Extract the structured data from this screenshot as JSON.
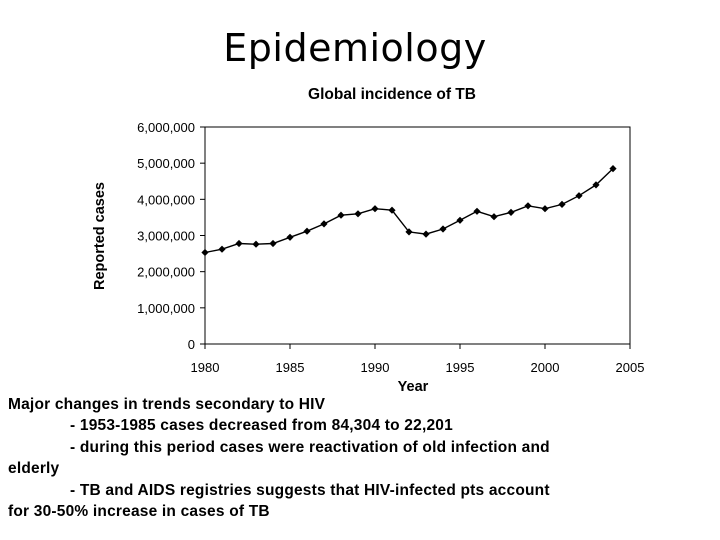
{
  "slide": {
    "title": "Epidemiology"
  },
  "chart_data": {
    "type": "line",
    "title": "Global incidence of TB",
    "xlabel": "Year",
    "ylabel": "Reported cases",
    "xlim": [
      1980,
      2005
    ],
    "ylim": [
      0,
      6000000
    ],
    "xticks": [
      1980,
      1985,
      1990,
      1995,
      2000,
      2005
    ],
    "xtick_labels": [
      "1980",
      "1985",
      "1990",
      "1995",
      "2000",
      "2005"
    ],
    "yticks": [
      0,
      1000000,
      2000000,
      3000000,
      4000000,
      5000000,
      6000000
    ],
    "ytick_labels": [
      "0",
      "1,000,000",
      "2,000,000",
      "3,000,000",
      "4,000,000",
      "5,000,000",
      "6,000,000"
    ],
    "grid": false,
    "marker": "diamond",
    "series": [
      {
        "name": "Reported cases",
        "x": [
          1980,
          1981,
          1982,
          1983,
          1984,
          1985,
          1986,
          1987,
          1988,
          1989,
          1990,
          1991,
          1992,
          1993,
          1994,
          1995,
          1996,
          1997,
          1998,
          1999,
          2000,
          2001,
          2002,
          2003,
          2004
        ],
        "values": [
          2530000,
          2620000,
          2780000,
          2760000,
          2780000,
          2950000,
          3120000,
          3320000,
          3560000,
          3600000,
          3740000,
          3700000,
          3100000,
          3040000,
          3180000,
          3420000,
          3670000,
          3520000,
          3640000,
          3820000,
          3740000,
          3860000,
          4100000,
          4400000,
          4850000
        ]
      }
    ]
  },
  "notes": {
    "lines": [
      "Major changes in trends secondary to HIV",
      "- 1953-1985 cases decreased from 84,304 to 22,201",
      "- during this period cases were reactivation of old infection and",
      "elderly",
      "- TB and AIDS registries suggests that HIV-infected pts account",
      "for 30-50% increase in cases of TB"
    ]
  }
}
